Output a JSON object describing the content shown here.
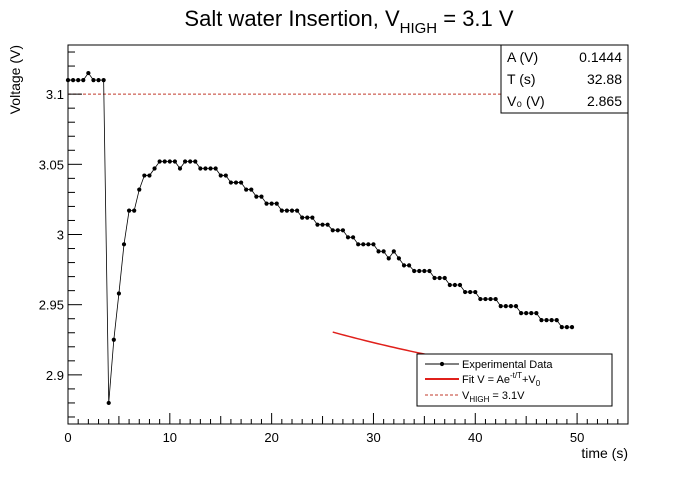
{
  "chart_data": {
    "type": "line",
    "title": {
      "main": "Salt water Insertion, V",
      "sub": "HIGH",
      "tail": " = 3.1 V"
    },
    "xlabel": "time (s)",
    "ylabel": "Voltage (V)",
    "xlim": [
      0,
      55
    ],
    "ylim": [
      2.865,
      3.135
    ],
    "x_ticks": [
      0,
      10,
      20,
      30,
      40,
      50
    ],
    "y_ticks": [
      2.9,
      2.95,
      3,
      3.05,
      3.1
    ],
    "y_tick_labels": [
      "2.9",
      "2.95",
      "3",
      "3.05",
      "3.1"
    ],
    "grid": false,
    "colors": {
      "data": "#000000",
      "fit": "#e0201b",
      "vhigh": "#c0392b"
    },
    "series": [
      {
        "name": "Experimental Data",
        "x": [
          0,
          0.5,
          1,
          1.5,
          2,
          2.5,
          3,
          3.5,
          4,
          4.5,
          5,
          5.5,
          6,
          6.5,
          7,
          7.5,
          8,
          8.5,
          9,
          9.5,
          10,
          10.5,
          11,
          11.5,
          12,
          12.5,
          13,
          13.5,
          14,
          14.5,
          15,
          15.5,
          16,
          16.5,
          17,
          17.5,
          18,
          18.5,
          19,
          19.5,
          20,
          20.5,
          21,
          21.5,
          22,
          22.5,
          23,
          23.5,
          24,
          24.5,
          25,
          25.5,
          26,
          26.5,
          27,
          27.5,
          28,
          28.5,
          29,
          29.5,
          30,
          30.5,
          31,
          31.5,
          32,
          32.5,
          33,
          33.5,
          34,
          34.5,
          35,
          35.5,
          36,
          36.5,
          37,
          37.5,
          38,
          38.5,
          39,
          39.5,
          40,
          40.5,
          41,
          41.5,
          42,
          42.5,
          43,
          43.5,
          44,
          44.5,
          45,
          45.5,
          46,
          46.5,
          47,
          47.5,
          48,
          48.5,
          49,
          49.5
        ],
        "y": [
          3.11,
          3.11,
          3.11,
          3.11,
          3.115,
          3.11,
          3.11,
          3.11,
          2.88,
          2.925,
          2.958,
          2.993,
          3.017,
          3.017,
          3.032,
          3.042,
          3.042,
          3.047,
          3.052,
          3.052,
          3.052,
          3.052,
          3.047,
          3.052,
          3.052,
          3.052,
          3.047,
          3.047,
          3.047,
          3.047,
          3.042,
          3.042,
          3.037,
          3.037,
          3.037,
          3.032,
          3.032,
          3.027,
          3.027,
          3.022,
          3.022,
          3.022,
          3.017,
          3.017,
          3.017,
          3.017,
          3.012,
          3.012,
          3.012,
          3.007,
          3.007,
          3.007,
          3.003,
          3.003,
          3.003,
          2.998,
          2.998,
          2.993,
          2.993,
          2.993,
          2.993,
          2.988,
          2.988,
          2.983,
          2.988,
          2.983,
          2.978,
          2.978,
          2.974,
          2.974,
          2.974,
          2.974,
          2.969,
          2.969,
          2.969,
          2.964,
          2.964,
          2.964,
          2.959,
          2.959,
          2.959,
          2.954,
          2.954,
          2.954,
          2.954,
          2.949,
          2.949,
          2.949,
          2.949,
          2.944,
          2.944,
          2.944,
          2.944,
          2.939,
          2.939,
          2.939,
          2.939,
          2.934,
          2.934,
          2.934
        ]
      },
      {
        "name": "Fit V = Ae^{-t/T}+V_0",
        "A": 0.1444,
        "T": 32.88,
        "V0": 2.865,
        "x_start": 26,
        "x_end": 50
      },
      {
        "name": "V_HIGH = 3.1V",
        "y": 3.1
      }
    ],
    "stats_box": {
      "rows": [
        {
          "label": "A (V)",
          "value": "0.1444"
        },
        {
          "label": "T (s)",
          "value": "32.88"
        },
        {
          "label": "V₀ (V)",
          "value": "2.865"
        }
      ],
      "placement": "top-right"
    },
    "legend": {
      "placement": "bottom-right",
      "entries": [
        {
          "pre": "Experimental Data"
        },
        {
          "pre": "Fit V = Ae",
          "sup": "-t/T",
          "mid": "+V",
          "sub": "0"
        },
        {
          "pre": "V",
          "sub": "HIGH",
          "post": " = 3.1V"
        }
      ]
    }
  }
}
